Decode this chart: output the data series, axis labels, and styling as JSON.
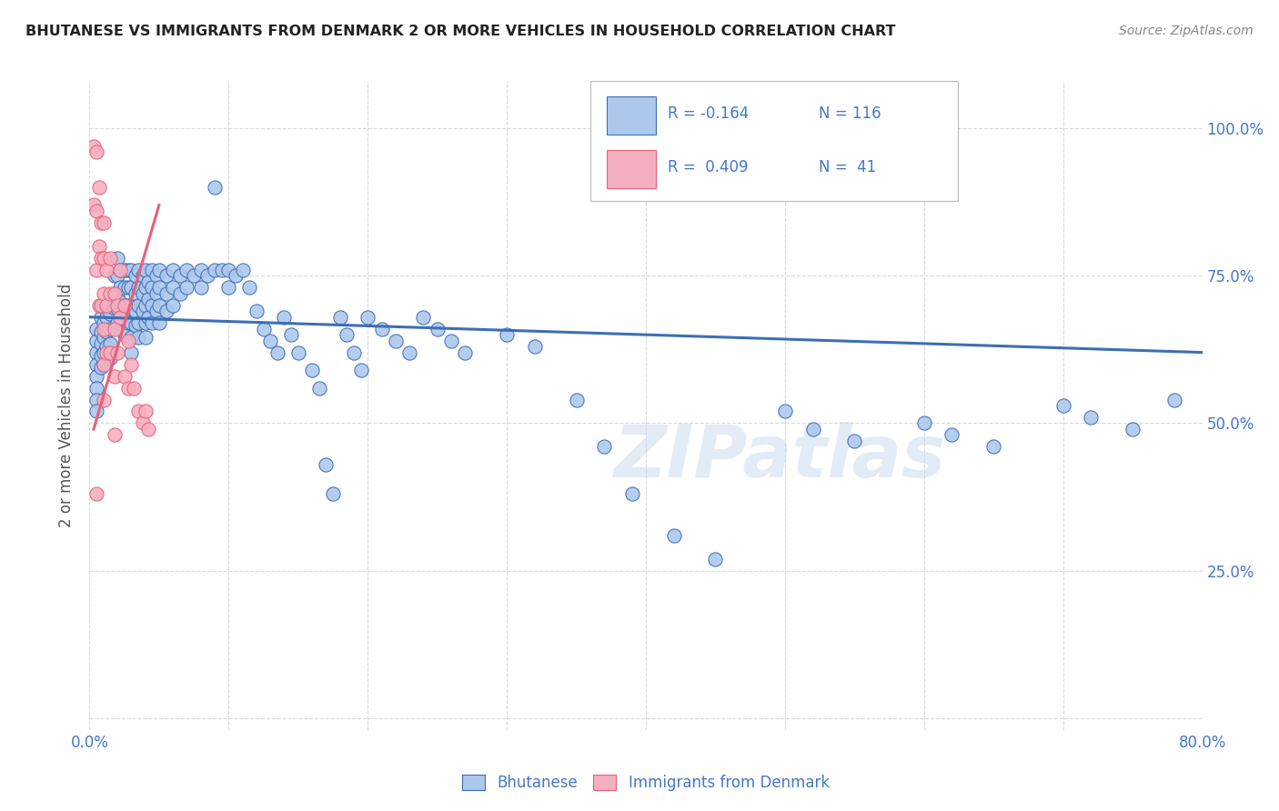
{
  "title": "BHUTANESE VS IMMIGRANTS FROM DENMARK 2 OR MORE VEHICLES IN HOUSEHOLD CORRELATION CHART",
  "source": "Source: ZipAtlas.com",
  "ylabel": "2 or more Vehicles in Household",
  "ytick_labels": [
    "",
    "25.0%",
    "50.0%",
    "75.0%",
    "100.0%"
  ],
  "ytick_values": [
    0,
    0.25,
    0.5,
    0.75,
    1.0
  ],
  "xlim": [
    0.0,
    0.8
  ],
  "ylim": [
    -0.02,
    1.08
  ],
  "watermark": "ZIPatlas",
  "blue_color": "#adc8ed",
  "pink_color": "#f5afc0",
  "line_blue": "#3c6fb5",
  "line_pink": "#e8607a",
  "legend_text_color": "#4477cc",
  "title_color": "#222222",
  "source_color": "#888888",
  "ylabel_color": "#555555",
  "grid_color": "#d0d0d0",
  "bhutanese_points": [
    [
      0.005,
      0.66
    ],
    [
      0.005,
      0.64
    ],
    [
      0.005,
      0.62
    ],
    [
      0.005,
      0.6
    ],
    [
      0.005,
      0.58
    ],
    [
      0.005,
      0.56
    ],
    [
      0.005,
      0.54
    ],
    [
      0.005,
      0.52
    ],
    [
      0.008,
      0.68
    ],
    [
      0.008,
      0.655
    ],
    [
      0.008,
      0.635
    ],
    [
      0.008,
      0.615
    ],
    [
      0.008,
      0.595
    ],
    [
      0.01,
      0.7
    ],
    [
      0.01,
      0.67
    ],
    [
      0.01,
      0.645
    ],
    [
      0.01,
      0.62
    ],
    [
      0.01,
      0.6
    ],
    [
      0.012,
      0.68
    ],
    [
      0.012,
      0.655
    ],
    [
      0.012,
      0.63
    ],
    [
      0.015,
      0.71
    ],
    [
      0.015,
      0.685
    ],
    [
      0.015,
      0.66
    ],
    [
      0.015,
      0.635
    ],
    [
      0.015,
      0.61
    ],
    [
      0.018,
      0.75
    ],
    [
      0.018,
      0.72
    ],
    [
      0.018,
      0.695
    ],
    [
      0.02,
      0.78
    ],
    [
      0.02,
      0.75
    ],
    [
      0.02,
      0.72
    ],
    [
      0.02,
      0.695
    ],
    [
      0.02,
      0.67
    ],
    [
      0.022,
      0.76
    ],
    [
      0.022,
      0.73
    ],
    [
      0.022,
      0.705
    ],
    [
      0.025,
      0.76
    ],
    [
      0.025,
      0.73
    ],
    [
      0.025,
      0.7
    ],
    [
      0.025,
      0.675
    ],
    [
      0.025,
      0.65
    ],
    [
      0.028,
      0.76
    ],
    [
      0.028,
      0.73
    ],
    [
      0.028,
      0.7
    ],
    [
      0.028,
      0.67
    ],
    [
      0.03,
      0.76
    ],
    [
      0.03,
      0.73
    ],
    [
      0.03,
      0.7
    ],
    [
      0.03,
      0.67
    ],
    [
      0.03,
      0.645
    ],
    [
      0.03,
      0.62
    ],
    [
      0.033,
      0.75
    ],
    [
      0.033,
      0.72
    ],
    [
      0.033,
      0.69
    ],
    [
      0.033,
      0.665
    ],
    [
      0.035,
      0.76
    ],
    [
      0.035,
      0.73
    ],
    [
      0.035,
      0.7
    ],
    [
      0.035,
      0.67
    ],
    [
      0.035,
      0.645
    ],
    [
      0.038,
      0.75
    ],
    [
      0.038,
      0.72
    ],
    [
      0.038,
      0.69
    ],
    [
      0.04,
      0.76
    ],
    [
      0.04,
      0.73
    ],
    [
      0.04,
      0.7
    ],
    [
      0.04,
      0.67
    ],
    [
      0.04,
      0.645
    ],
    [
      0.042,
      0.74
    ],
    [
      0.042,
      0.71
    ],
    [
      0.042,
      0.68
    ],
    [
      0.045,
      0.76
    ],
    [
      0.045,
      0.73
    ],
    [
      0.045,
      0.7
    ],
    [
      0.045,
      0.67
    ],
    [
      0.048,
      0.75
    ],
    [
      0.048,
      0.72
    ],
    [
      0.048,
      0.69
    ],
    [
      0.05,
      0.76
    ],
    [
      0.05,
      0.73
    ],
    [
      0.05,
      0.7
    ],
    [
      0.05,
      0.67
    ],
    [
      0.055,
      0.75
    ],
    [
      0.055,
      0.72
    ],
    [
      0.055,
      0.69
    ],
    [
      0.06,
      0.76
    ],
    [
      0.06,
      0.73
    ],
    [
      0.06,
      0.7
    ],
    [
      0.065,
      0.75
    ],
    [
      0.065,
      0.72
    ],
    [
      0.07,
      0.76
    ],
    [
      0.07,
      0.73
    ],
    [
      0.075,
      0.75
    ],
    [
      0.08,
      0.76
    ],
    [
      0.08,
      0.73
    ],
    [
      0.085,
      0.75
    ],
    [
      0.09,
      0.9
    ],
    [
      0.09,
      0.76
    ],
    [
      0.095,
      0.76
    ],
    [
      0.1,
      0.76
    ],
    [
      0.1,
      0.73
    ],
    [
      0.105,
      0.75
    ],
    [
      0.11,
      0.76
    ],
    [
      0.115,
      0.73
    ],
    [
      0.12,
      0.69
    ],
    [
      0.125,
      0.66
    ],
    [
      0.13,
      0.64
    ],
    [
      0.135,
      0.62
    ],
    [
      0.14,
      0.68
    ],
    [
      0.145,
      0.65
    ],
    [
      0.15,
      0.62
    ],
    [
      0.16,
      0.59
    ],
    [
      0.165,
      0.56
    ],
    [
      0.17,
      0.43
    ],
    [
      0.175,
      0.38
    ],
    [
      0.18,
      0.68
    ],
    [
      0.185,
      0.65
    ],
    [
      0.19,
      0.62
    ],
    [
      0.195,
      0.59
    ],
    [
      0.2,
      0.68
    ],
    [
      0.21,
      0.66
    ],
    [
      0.22,
      0.64
    ],
    [
      0.23,
      0.62
    ],
    [
      0.24,
      0.68
    ],
    [
      0.25,
      0.66
    ],
    [
      0.26,
      0.64
    ],
    [
      0.27,
      0.62
    ],
    [
      0.3,
      0.65
    ],
    [
      0.32,
      0.63
    ],
    [
      0.35,
      0.54
    ],
    [
      0.37,
      0.46
    ],
    [
      0.39,
      0.38
    ],
    [
      0.42,
      0.31
    ],
    [
      0.45,
      0.27
    ],
    [
      0.5,
      0.52
    ],
    [
      0.52,
      0.49
    ],
    [
      0.55,
      0.47
    ],
    [
      0.6,
      0.5
    ],
    [
      0.62,
      0.48
    ],
    [
      0.65,
      0.46
    ],
    [
      0.7,
      0.53
    ],
    [
      0.72,
      0.51
    ],
    [
      0.75,
      0.49
    ],
    [
      0.78,
      0.54
    ]
  ],
  "denmark_points": [
    [
      0.003,
      0.97
    ],
    [
      0.003,
      0.87
    ],
    [
      0.005,
      0.96
    ],
    [
      0.005,
      0.86
    ],
    [
      0.005,
      0.76
    ],
    [
      0.007,
      0.9
    ],
    [
      0.007,
      0.8
    ],
    [
      0.007,
      0.7
    ],
    [
      0.008,
      0.84
    ],
    [
      0.008,
      0.78
    ],
    [
      0.008,
      0.7
    ],
    [
      0.01,
      0.84
    ],
    [
      0.01,
      0.78
    ],
    [
      0.01,
      0.72
    ],
    [
      0.01,
      0.66
    ],
    [
      0.01,
      0.6
    ],
    [
      0.01,
      0.54
    ],
    [
      0.012,
      0.76
    ],
    [
      0.012,
      0.7
    ],
    [
      0.012,
      0.62
    ],
    [
      0.015,
      0.78
    ],
    [
      0.015,
      0.72
    ],
    [
      0.015,
      0.62
    ],
    [
      0.018,
      0.72
    ],
    [
      0.018,
      0.66
    ],
    [
      0.018,
      0.58
    ],
    [
      0.018,
      0.48
    ],
    [
      0.02,
      0.7
    ],
    [
      0.02,
      0.62
    ],
    [
      0.022,
      0.76
    ],
    [
      0.022,
      0.68
    ],
    [
      0.025,
      0.7
    ],
    [
      0.025,
      0.58
    ],
    [
      0.028,
      0.64
    ],
    [
      0.028,
      0.56
    ],
    [
      0.03,
      0.6
    ],
    [
      0.032,
      0.56
    ],
    [
      0.035,
      0.52
    ],
    [
      0.038,
      0.5
    ],
    [
      0.04,
      0.52
    ],
    [
      0.042,
      0.49
    ],
    [
      0.005,
      0.38
    ]
  ],
  "blue_trend_x": [
    0.0,
    0.8
  ],
  "blue_trend_y": [
    0.68,
    0.62
  ],
  "pink_trend_x": [
    0.003,
    0.05
  ],
  "pink_trend_y": [
    0.49,
    0.87
  ]
}
